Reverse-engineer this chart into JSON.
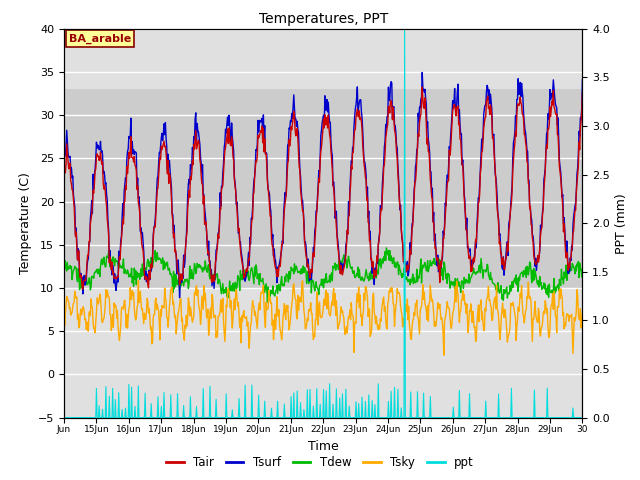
{
  "title": "Temperatures, PPT",
  "xlabel": "Time",
  "ylabel_left": "Temperature (C)",
  "ylabel_right": "PPT (mm)",
  "annotation": "BA_arable",
  "xlim_days": [
    14.0,
    30.0
  ],
  "ylim_left": [
    -5,
    40
  ],
  "ylim_right": [
    0.0,
    4.0
  ],
  "yticks_left": [
    -5,
    0,
    5,
    10,
    15,
    20,
    25,
    30,
    35,
    40
  ],
  "yticks_right": [
    0.0,
    0.5,
    1.0,
    1.5,
    2.0,
    2.5,
    3.0,
    3.5,
    4.0
  ],
  "xtick_positions": [
    14,
    15,
    16,
    17,
    18,
    19,
    20,
    21,
    22,
    23,
    24,
    25,
    26,
    27,
    28,
    29,
    30
  ],
  "xtick_labels": [
    "Jun",
    "15Jun",
    "16Jun",
    "17Jun",
    "18Jun",
    "19Jun",
    "20Jun",
    "21Jun",
    "22Jun",
    "23Jun",
    "24Jun",
    "25Jun",
    "26Jun",
    "27Jun",
    "28Jun",
    "29Jun",
    "30"
  ],
  "colors": {
    "Tair": "#cc0000",
    "Tsurf": "#0000cc",
    "Tdew": "#00bb00",
    "Tsky": "#ffaa00",
    "ppt": "#00dddd"
  },
  "background_color": "#ffffff",
  "plot_bg_color": "#e0e0e0",
  "grid_color": "#ffffff",
  "band_ymin": 10,
  "band_ymax": 33,
  "band_color": "#cccccc"
}
